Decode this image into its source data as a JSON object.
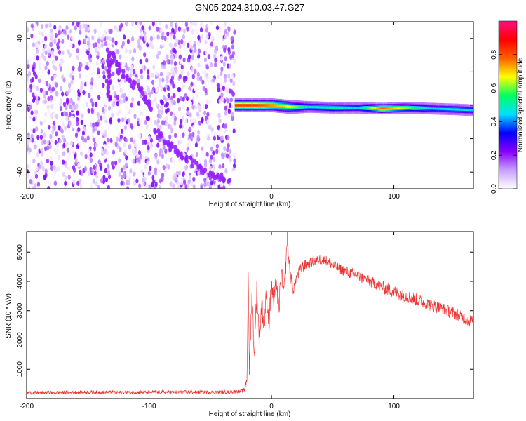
{
  "title": "GN05.2024.310.03.47.G27",
  "chart_data": [
    {
      "type": "heatmap",
      "xlabel": "Height of straight line (km)",
      "ylabel": "Frequency (Hz)",
      "xlim": [
        -200,
        165
      ],
      "ylim": [
        -50,
        50
      ],
      "xticks": [
        -200,
        -100,
        0,
        100
      ],
      "yticks": [
        -40,
        -20,
        0,
        20,
        40
      ],
      "grid": false,
      "colorbar": {
        "label": "Normalized spectral amplitude",
        "range": [
          0.0,
          1.0
        ],
        "ticks": [
          "0.0",
          "0.2",
          "0.4",
          "0.6",
          "0.8"
        ],
        "tick_values": [
          0.0,
          0.2,
          0.4,
          0.6,
          0.8
        ],
        "colors": [
          "#ffffff",
          "#c8a0ff",
          "#8800ff",
          "#0000ff",
          "#00e0ff",
          "#00ff60",
          "#ffff00",
          "#ff6000",
          "#ff0000",
          "#ff1080"
        ]
      },
      "noise_region": {
        "x": [
          -200,
          -30
        ],
        "y": [
          -50,
          50
        ],
        "amplitude": [
          0.0,
          0.25
        ]
      },
      "ridges": [
        {
          "x": [
            -132,
            -125,
            -115,
            -105,
            -97
          ],
          "y": [
            33,
            22,
            14,
            7,
            -3
          ],
          "amplitude": 0.2
        },
        {
          "x": [
            -132,
            -133,
            -134
          ],
          "y": [
            30,
            20,
            5
          ],
          "amplitude": 0.2
        },
        {
          "x": [
            -95,
            -85,
            -75,
            -60,
            -45,
            -35
          ],
          "y": [
            -15,
            -23,
            -30,
            -37,
            -42,
            -45
          ],
          "amplitude": 0.2
        }
      ],
      "signal_band": {
        "x": [
          -30,
          -15,
          0,
          15,
          30,
          50,
          70,
          90,
          110,
          130,
          150,
          165
        ],
        "y": [
          0,
          0,
          0,
          -1,
          -1,
          -1.5,
          -1.5,
          -2,
          -1.5,
          -2,
          -2.5,
          -3
        ],
        "peak_amplitude": [
          0.95,
          0.95,
          0.85,
          0.75,
          0.55,
          0.6,
          0.5,
          0.9,
          0.7,
          0.5,
          0.55,
          0.5
        ],
        "halfwidth_hz": [
          3,
          3,
          3,
          3,
          2.5,
          2.5,
          2.5,
          2.5,
          2.5,
          2.5,
          2.5,
          2.5
        ]
      }
    },
    {
      "type": "line",
      "xlabel": "Height of straight line (km)",
      "ylabel": "SNR (10 * v/v)",
      "xlim": [
        -200,
        165
      ],
      "ylim": [
        0,
        5700
      ],
      "xticks": [
        -200,
        -100,
        0,
        100
      ],
      "yticks": [
        1000,
        2000,
        3000,
        4000,
        5000
      ],
      "grid": false,
      "color": "#ee3333",
      "series": [
        {
          "x": [
            -200,
            -180,
            -160,
            -140,
            -120,
            -100,
            -80,
            -60,
            -40,
            -25,
            -22,
            -20,
            -19,
            -18,
            -16,
            -14,
            -12,
            -10,
            -8,
            -6,
            -4,
            -2,
            0,
            2,
            4,
            6,
            8,
            10,
            12,
            13,
            14,
            16,
            18,
            20,
            25,
            30,
            35,
            40,
            45,
            50,
            60,
            70,
            80,
            90,
            100,
            110,
            120,
            130,
            140,
            150,
            160,
            165
          ],
          "y": [
            200,
            200,
            210,
            220,
            210,
            220,
            220,
            220,
            220,
            240,
            300,
            700,
            4100,
            1000,
            3600,
            1500,
            3800,
            2000,
            3200,
            2500,
            3600,
            2600,
            3900,
            3200,
            4000,
            3000,
            4300,
            3500,
            4700,
            5700,
            4800,
            4100,
            3700,
            4100,
            4500,
            4600,
            4700,
            4750,
            4700,
            4550,
            4350,
            4200,
            4000,
            3800,
            3650,
            3500,
            3350,
            3200,
            3050,
            2900,
            2700,
            2600
          ],
          "noise_amplitude": [
            60,
            60,
            60,
            60,
            60,
            60,
            60,
            60,
            60,
            60,
            80,
            150,
            300,
            300,
            400,
            400,
            400,
            400,
            400,
            400,
            400,
            400,
            400,
            400,
            400,
            400,
            400,
            400,
            300,
            300,
            300,
            200,
            200,
            200,
            200,
            180,
            180,
            180,
            180,
            180,
            180,
            200,
            200,
            220,
            220,
            220,
            220,
            220,
            220,
            220,
            220,
            220
          ]
        }
      ]
    }
  ]
}
